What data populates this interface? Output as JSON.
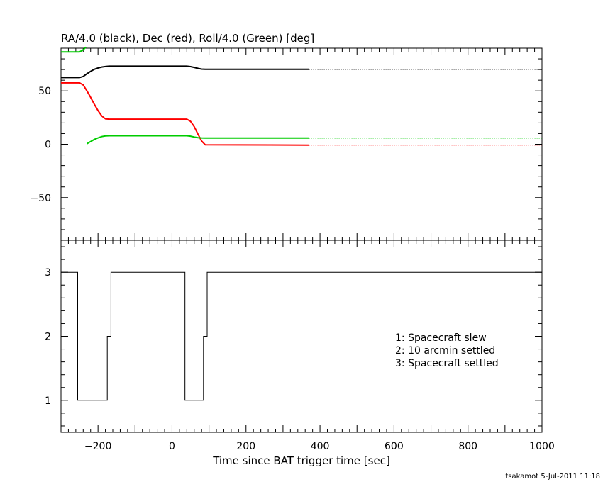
{
  "chart_data": [
    {
      "type": "line",
      "title": "RA/4.0 (black), Dec (red), Roll/4.0 (Green) [deg]",
      "xlim": [
        -300,
        1000
      ],
      "ylim": [
        -90,
        90
      ],
      "y_ticks": [
        -50,
        0,
        50
      ],
      "grid": false,
      "series": [
        {
          "color": "#000000",
          "x": [
            -300,
            -250,
            -240,
            -230,
            -220,
            -210,
            -200,
            -190,
            -180,
            -170,
            40,
            50,
            60,
            70,
            80,
            90,
            370
          ],
          "y": [
            62.5,
            62.5,
            63.5,
            66,
            68.3,
            70.2,
            71.5,
            72.3,
            72.8,
            73.1,
            73.1,
            72.7,
            72.0,
            71.1,
            70.4,
            70.2,
            70.2
          ]
        },
        {
          "color": "#000000",
          "style": "dotted",
          "x": [
            370,
            1000
          ],
          "y": [
            70.2,
            70.2
          ]
        },
        {
          "color": "#ff0000",
          "x": [
            -300,
            -250,
            -240,
            -230,
            -220,
            -210,
            -200,
            -190,
            -180,
            -170,
            40,
            50,
            60,
            70,
            80,
            90,
            370
          ],
          "y": [
            57.5,
            57.5,
            55.5,
            50,
            44,
            37.5,
            31.5,
            26.5,
            23.8,
            23.5,
            23.5,
            21.5,
            16.5,
            9.5,
            3,
            -0.5,
            -0.8
          ]
        },
        {
          "color": "#ff0000",
          "style": "dotted",
          "x": [
            370,
            1000
          ],
          "y": [
            -0.8,
            -0.8
          ]
        },
        {
          "color": "#00cc00",
          "x": [
            -300,
            -250,
            -240,
            -233
          ],
          "y": [
            86.5,
            86.5,
            88.5,
            91
          ]
        },
        {
          "color": "#00cc00",
          "x": [
            -230,
            -220,
            -210,
            -200,
            -190,
            -180,
            -170,
            40,
            50,
            60,
            70,
            80,
            90,
            370
          ],
          "y": [
            0.5,
            2.5,
            4.5,
            6,
            7.2,
            7.8,
            8,
            8,
            7.6,
            6.8,
            6.2,
            5.9,
            5.8,
            5.8
          ]
        },
        {
          "color": "#00cc00",
          "style": "dotted",
          "x": [
            370,
            1000
          ],
          "y": [
            5.8,
            5.8
          ]
        }
      ]
    },
    {
      "type": "line",
      "xlabel": "Time since BAT trigger time [sec]",
      "xlim": [
        -300,
        1000
      ],
      "ylim": [
        0.5,
        3.5
      ],
      "x_ticks": [
        -200,
        0,
        200,
        400,
        600,
        800,
        1000
      ],
      "y_ticks": [
        1,
        2,
        3
      ],
      "grid": false,
      "series": [
        {
          "color": "#000000",
          "style": "step",
          "x": [
            -300,
            -255,
            -255,
            -175,
            -175,
            -165,
            -165,
            35,
            35,
            85,
            85,
            95,
            95,
            1000
          ],
          "y": [
            3,
            3,
            1,
            1,
            2,
            2,
            3,
            3,
            1,
            1,
            2,
            2,
            3,
            3
          ]
        }
      ],
      "legend": {
        "placement": "right",
        "entries": [
          "1: Spacecraft slew",
          "2: 10 arcmin settled",
          "3: Spacecraft settled"
        ]
      }
    }
  ],
  "footer": "tsakamot  5-Jul-2011 11:18"
}
